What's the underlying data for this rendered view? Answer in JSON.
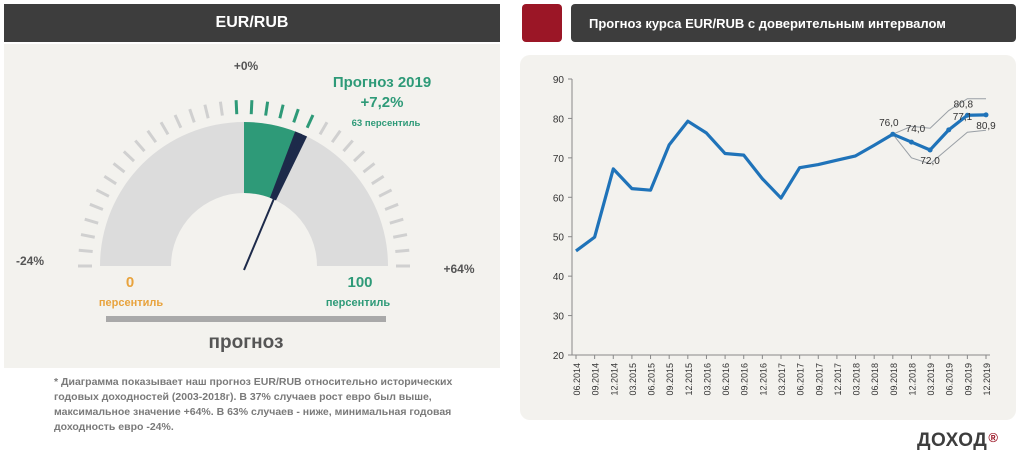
{
  "left": {
    "title": "EUR/RUB",
    "gauge": {
      "forecast_title": "Прогноз 2019",
      "forecast_value": "+7,2%",
      "forecast_percentile": "63 персентиль",
      "forecast_percentile_value": 63,
      "top_label": "+0%",
      "left_label": "-24%",
      "right_label": "+64%",
      "min_percentile_value": "0",
      "min_percentile_label": "персентиль",
      "max_percentile_value": "100",
      "max_percentile_label": "персентиль",
      "bottom_label": "прогноз",
      "colors": {
        "accent": "#2e9a78",
        "needle": "#1d2a4a",
        "min": "#e8a33d",
        "max": "#2e9a78"
      }
    },
    "footnote": "* Диаграмма показывает наш прогноз EUR/RUB относительно исторических годовых доходностей (2003-2018г). В 37% случаев рост евро был выше, максимальное значение +64%. В 63% случаев - ниже, минимальная годовая доходность евро -24%."
  },
  "right": {
    "title": "Прогноз курса EUR/RUB с доверительным интервалом"
  },
  "logo": {
    "text": "ДОХОД",
    "mark": "®"
  },
  "chart_data": {
    "type": "line",
    "title": "Прогноз курса EUR/RUB с доверительным интервалом",
    "ylim": [
      20,
      90
    ],
    "yticks": [
      20,
      30,
      40,
      50,
      60,
      70,
      80,
      90
    ],
    "categories": [
      "06.2014",
      "09.2014",
      "12.2014",
      "03.2015",
      "06.2015",
      "09.2015",
      "12.2015",
      "03.2016",
      "06.2016",
      "09.2016",
      "12.2016",
      "03.2017",
      "06.2017",
      "09.2017",
      "12.2017",
      "03.2018",
      "06.2018",
      "09.2018",
      "12.2018",
      "03.2019",
      "06.2019",
      "09.2019",
      "12.2019"
    ],
    "series": [
      {
        "values": [
          46.4,
          49.9,
          67.2,
          62.2,
          61.8,
          73.3,
          79.3,
          76.3,
          71.1,
          70.7,
          64.7,
          59.8,
          67.5,
          68.3,
          69.4,
          70.5,
          73.2,
          76.0,
          74.0,
          72.0,
          77.1,
          80.8,
          80.9
        ]
      },
      {
        "values": [
          null,
          null,
          null,
          null,
          null,
          null,
          null,
          null,
          null,
          null,
          null,
          null,
          null,
          null,
          null,
          null,
          null,
          76.0,
          78.0,
          77.5,
          82.0,
          85.0,
          85.0
        ]
      },
      {
        "values": [
          null,
          null,
          null,
          null,
          null,
          null,
          null,
          null,
          null,
          null,
          null,
          null,
          null,
          null,
          null,
          null,
          null,
          76.0,
          70.0,
          68.5,
          72.5,
          76.5,
          77.0
        ]
      }
    ],
    "data_labels": [
      {
        "index": 17,
        "text": "76,0"
      },
      {
        "index": 18,
        "text": "74,0"
      },
      {
        "index": 19,
        "text": "72,0"
      },
      {
        "index": 20,
        "text": "77,1"
      },
      {
        "index": 21,
        "text": "80,8"
      },
      {
        "index": 22,
        "text": "80,9"
      }
    ],
    "grid": false,
    "colors": {
      "main": "#1f73b9",
      "interval": "#9aa0a6"
    }
  }
}
